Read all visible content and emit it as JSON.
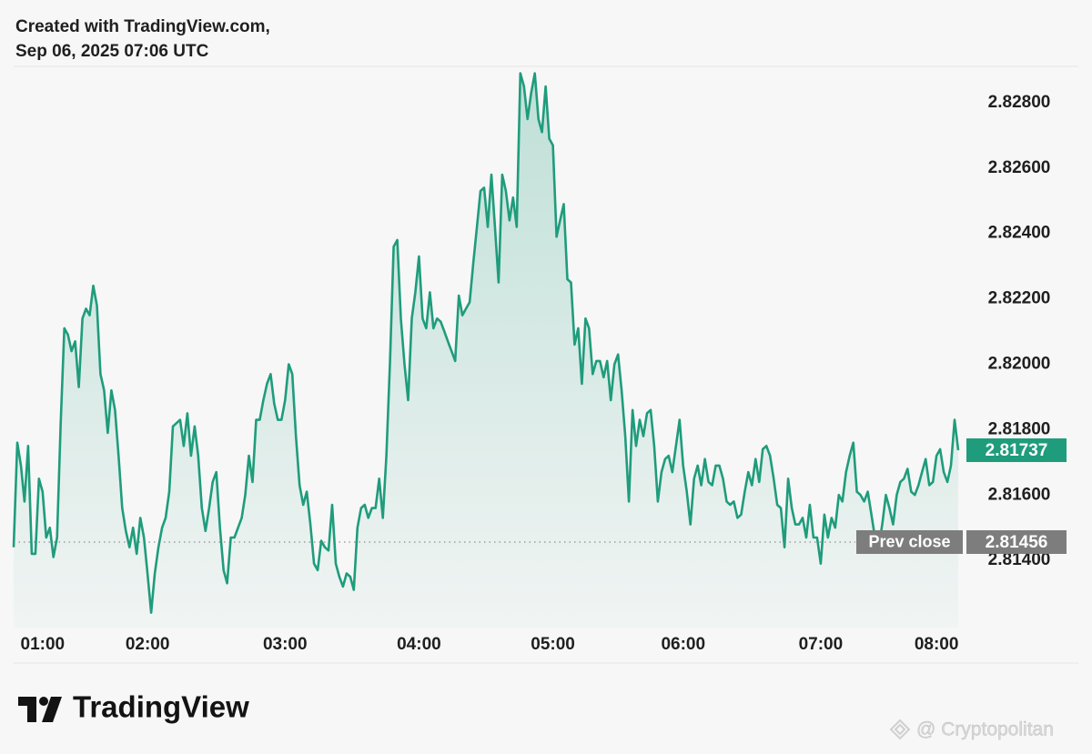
{
  "header": {
    "line1": "Created with TradingView.com,",
    "line2": "Sep 06, 2025 07:06 UTC"
  },
  "chart_data": {
    "type": "line",
    "color": "#1f9c7c",
    "values": [
      2.8144,
      2.8176,
      2.8169,
      2.8158,
      2.8175,
      2.8142,
      2.8142,
      2.8165,
      2.8161,
      2.8147,
      2.815,
      2.8141,
      2.8147,
      2.8182,
      2.8211,
      2.8209,
      2.8204,
      2.8207,
      2.8193,
      2.8214,
      2.8217,
      2.8215,
      2.8224,
      2.8218,
      2.8197,
      2.8192,
      2.8179,
      2.8192,
      2.8186,
      2.8172,
      2.8156,
      2.8149,
      2.8144,
      2.815,
      2.8142,
      2.8153,
      2.8147,
      2.8136,
      2.8124,
      2.8136,
      2.8144,
      2.815,
      2.8153,
      2.8161,
      2.8181,
      2.8182,
      2.8183,
      2.8175,
      2.8185,
      2.8172,
      2.8181,
      2.8172,
      2.8156,
      2.8149,
      2.8156,
      2.8164,
      2.8167,
      2.815,
      2.8137,
      2.8133,
      2.8147,
      2.8147,
      2.815,
      2.8153,
      2.816,
      2.8172,
      2.8164,
      2.8183,
      2.8183,
      2.8189,
      2.8194,
      2.8197,
      2.8188,
      2.8183,
      2.8183,
      2.8189,
      2.82,
      2.8197,
      2.8178,
      2.8163,
      2.8157,
      2.8161,
      2.8151,
      2.8139,
      2.8137,
      2.8146,
      2.8144,
      2.8143,
      2.8157,
      2.8139,
      2.8135,
      2.8132,
      2.8136,
      2.8135,
      2.8131,
      2.815,
      2.8156,
      2.8157,
      2.8153,
      2.8156,
      2.8156,
      2.8165,
      2.8153,
      2.8172,
      2.8201,
      2.8236,
      2.8238,
      2.8214,
      2.82,
      2.8189,
      2.8214,
      2.8222,
      2.8233,
      2.8214,
      2.8211,
      2.8222,
      2.8211,
      2.8214,
      2.8213,
      2.821,
      2.8207,
      2.8204,
      2.8201,
      2.8221,
      2.8215,
      2.8217,
      2.8219,
      2.8231,
      2.8242,
      2.8253,
      2.8254,
      2.8242,
      2.8258,
      2.8242,
      2.8225,
      2.8258,
      2.8253,
      2.8244,
      2.8251,
      2.8242,
      2.8289,
      2.8285,
      2.8275,
      2.8283,
      2.8289,
      2.8275,
      2.8271,
      2.8285,
      2.8269,
      2.8267,
      2.8239,
      2.8244,
      2.8249,
      2.8226,
      2.8225,
      2.8206,
      2.8211,
      2.8194,
      2.8214,
      2.8211,
      2.8197,
      2.8201,
      2.8201,
      2.8196,
      2.8201,
      2.8189,
      2.82,
      2.8203,
      2.8192,
      2.8178,
      2.8158,
      2.8186,
      2.8175,
      2.8183,
      2.8178,
      2.8185,
      2.8186,
      2.8175,
      2.8158,
      2.8167,
      2.8171,
      2.8172,
      2.8167,
      2.8175,
      2.8183,
      2.8169,
      2.8161,
      2.8151,
      2.8165,
      2.8169,
      2.8163,
      2.8171,
      2.8164,
      2.8163,
      2.8169,
      2.8169,
      2.8165,
      2.8158,
      2.8157,
      2.8158,
      2.8153,
      2.8154,
      2.8161,
      2.8167,
      2.8163,
      2.8171,
      2.8164,
      2.8174,
      2.8175,
      2.8172,
      2.8165,
      2.8157,
      2.8156,
      2.8144,
      2.8165,
      2.8156,
      2.8151,
      2.8151,
      2.8153,
      2.8147,
      2.8157,
      2.8147,
      2.8147,
      2.8139,
      2.8154,
      2.8147,
      2.8153,
      2.815,
      2.816,
      2.8158,
      2.8167,
      2.8172,
      2.8176,
      2.8161,
      2.816,
      2.8158,
      2.8161,
      2.8154,
      2.8147,
      2.8144,
      2.8151,
      2.816,
      2.8156,
      2.8151,
      2.816,
      2.8164,
      2.8165,
      2.8168,
      2.8161,
      2.816,
      2.8163,
      2.8167,
      2.8171,
      2.8163,
      2.8164,
      2.8172,
      2.8174,
      2.8167,
      2.8164,
      2.8169,
      2.8183,
      2.81737
    ],
    "xlim": [
      0,
      261
    ],
    "xticks": [
      {
        "value": 8,
        "label": "01:00"
      },
      {
        "value": 37,
        "label": "02:00"
      },
      {
        "value": 75,
        "label": "03:00"
      },
      {
        "value": 112,
        "label": "04:00"
      },
      {
        "value": 149,
        "label": "05:00"
      },
      {
        "value": 185,
        "label": "06:00"
      },
      {
        "value": 223,
        "label": "07:00"
      },
      {
        "value": 255,
        "label": "08:00"
      }
    ],
    "ylim": [
      2.812,
      2.829
    ],
    "yticks": [
      {
        "value": 2.814,
        "label": "2.81400"
      },
      {
        "value": 2.816,
        "label": "2.81600"
      },
      {
        "value": 2.818,
        "label": "2.81800"
      },
      {
        "value": 2.82,
        "label": "2.82000"
      },
      {
        "value": 2.822,
        "label": "2.82200"
      },
      {
        "value": 2.824,
        "label": "2.82400"
      },
      {
        "value": 2.826,
        "label": "2.82600"
      },
      {
        "value": 2.828,
        "label": "2.82800"
      }
    ],
    "last_price": 2.81737,
    "prev_close": {
      "label": "Prev close",
      "value": 2.81456
    }
  },
  "footer": {
    "brand": "TradingView",
    "watermark": "@ Cryptopolitan"
  }
}
